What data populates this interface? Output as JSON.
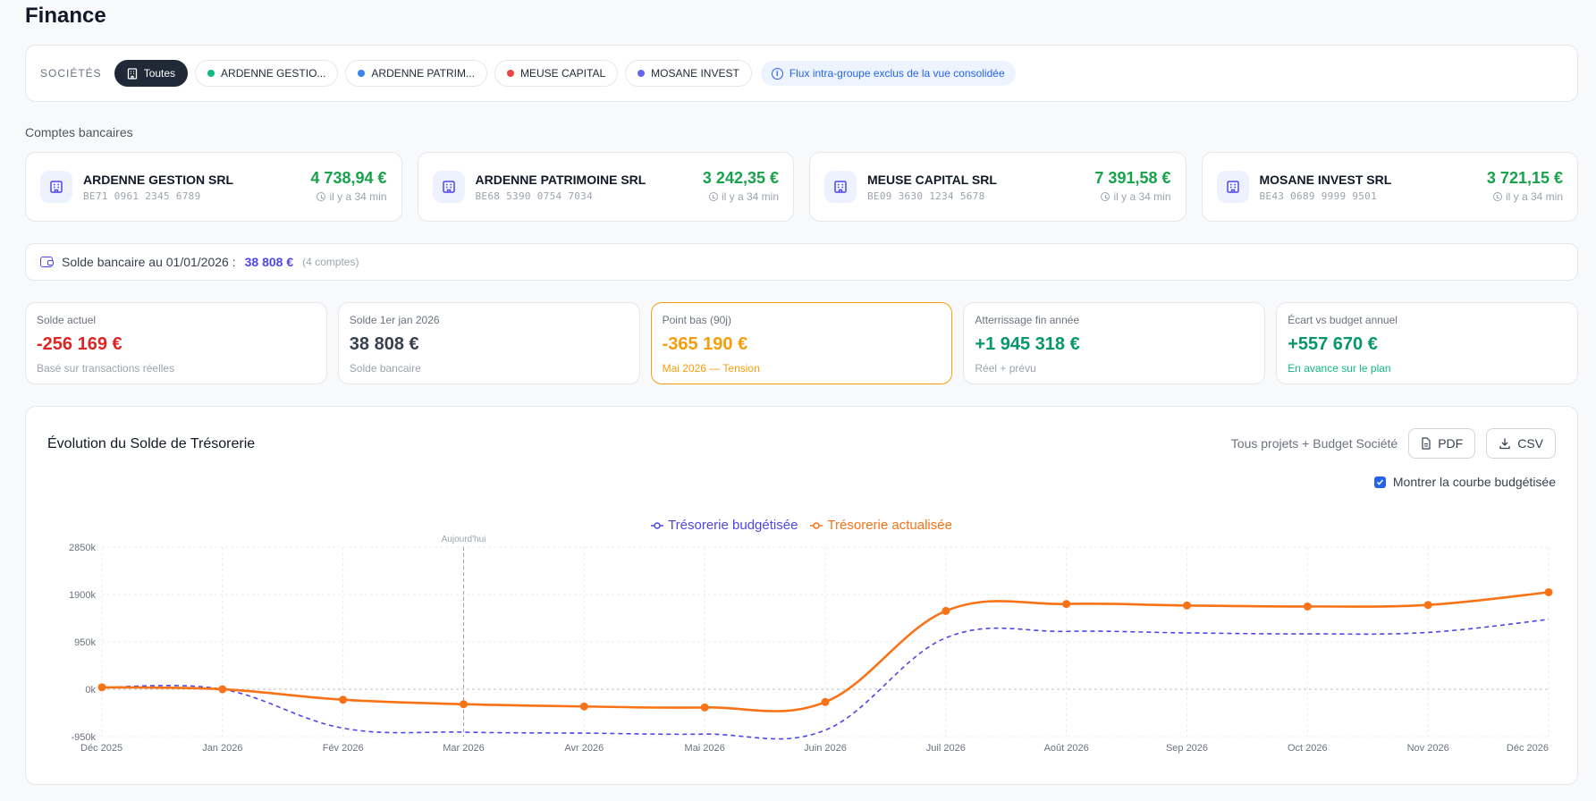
{
  "page": {
    "title": "Finance"
  },
  "filters": {
    "label": "SOCIÉTÉS",
    "chips": [
      {
        "label": "Toutes",
        "active": true,
        "color": ""
      },
      {
        "label": "ARDENNE GESTIO...",
        "active": false,
        "color": "#10b981"
      },
      {
        "label": "ARDENNE PATRIM...",
        "active": false,
        "color": "#3b82f6"
      },
      {
        "label": "MEUSE CAPITAL",
        "active": false,
        "color": "#ef4444"
      },
      {
        "label": "MOSANE INVEST",
        "active": false,
        "color": "#6366f1"
      }
    ],
    "info": "Flux intra-groupe exclus de la vue consolidée"
  },
  "accounts_section": {
    "title": "Comptes bancaires"
  },
  "accounts": [
    {
      "name": "ARDENNE GESTION SRL",
      "iban": "BE71 0961 2345 6789",
      "balance": "4 738,94 €",
      "updated": "il y a 34 min"
    },
    {
      "name": "ARDENNE PATRIMOINE SRL",
      "iban": "BE68 5390 0754 7034",
      "balance": "3 242,35 €",
      "updated": "il y a 34 min"
    },
    {
      "name": "MEUSE CAPITAL SRL",
      "iban": "BE09 3630 1234 5678",
      "balance": "7 391,58 €",
      "updated": "il y a 34 min"
    },
    {
      "name": "MOSANE INVEST SRL",
      "iban": "BE43 0689 9999 9501",
      "balance": "3 721,15 €",
      "updated": "il y a 34 min"
    }
  ],
  "bank_balance": {
    "label": "Solde bancaire au 01/01/2026 :",
    "amount": "38 808 €",
    "count": "(4 comptes)"
  },
  "kpis": [
    {
      "label": "Solde actuel",
      "value": "-256 169 €",
      "sub": "Basé sur transactions réelles",
      "value_color": "#dc2626",
      "sub_color": "#9ca3af"
    },
    {
      "label": "Solde 1er jan 2026",
      "value": "38 808 €",
      "sub": "Solde bancaire",
      "value_color": "#374151",
      "sub_color": "#9ca3af"
    },
    {
      "label": "Point bas (90j)",
      "value": "-365 190 €",
      "sub": "Mai 2026 — Tension",
      "value_color": "#f59e0b",
      "sub_color": "#f59e0b"
    },
    {
      "label": "Atterrissage fin année",
      "value": "+1 945 318 €",
      "sub": "Réel + prévu",
      "value_color": "#059669",
      "sub_color": "#9ca3af"
    },
    {
      "label": "Écart vs budget annuel",
      "value": "+557 670 €",
      "sub": "En avance sur le plan",
      "value_color": "#059669",
      "sub_color": "#10b981"
    }
  ],
  "chart": {
    "title": "Évolution du Solde de Trésorerie",
    "scope": "Tous projets + Budget Société",
    "pdf_label": "PDF",
    "csv_label": "CSV",
    "toggle_label": "Montrer la courbe budgétisée",
    "toggle_checked": true
  },
  "chart_data": {
    "type": "line",
    "x": [
      "Déc 2025",
      "Jan 2026",
      "Fév 2026",
      "Mar 2026",
      "Avr 2026",
      "Mai 2026",
      "Juin 2026",
      "Juil 2026",
      "Août 2026",
      "Sep 2026",
      "Oct 2026",
      "Nov 2026",
      "Déc 2026"
    ],
    "series": [
      {
        "name": "Trésorerie budgétisée",
        "color": "#4f46e5",
        "dashed": true,
        "values": [
          39,
          0,
          -780,
          -860,
          -880,
          -900,
          -820,
          1030,
          1160,
          1130,
          1110,
          1140,
          1400
        ]
      },
      {
        "name": "Trésorerie actualisée",
        "color": "#f97316",
        "dashed": false,
        "markers": true,
        "values": [
          39,
          0,
          -210,
          -300,
          -345,
          -365,
          -256,
          1570,
          1710,
          1680,
          1660,
          1690,
          1945
        ]
      }
    ],
    "yticks": [
      "2850k",
      "1900k",
      "950k",
      "0k",
      "-950k"
    ],
    "ylim": [
      -950,
      2850
    ],
    "annotation": {
      "x": "Mar 2026",
      "label": "Aujourd'hui"
    },
    "grid": true
  }
}
